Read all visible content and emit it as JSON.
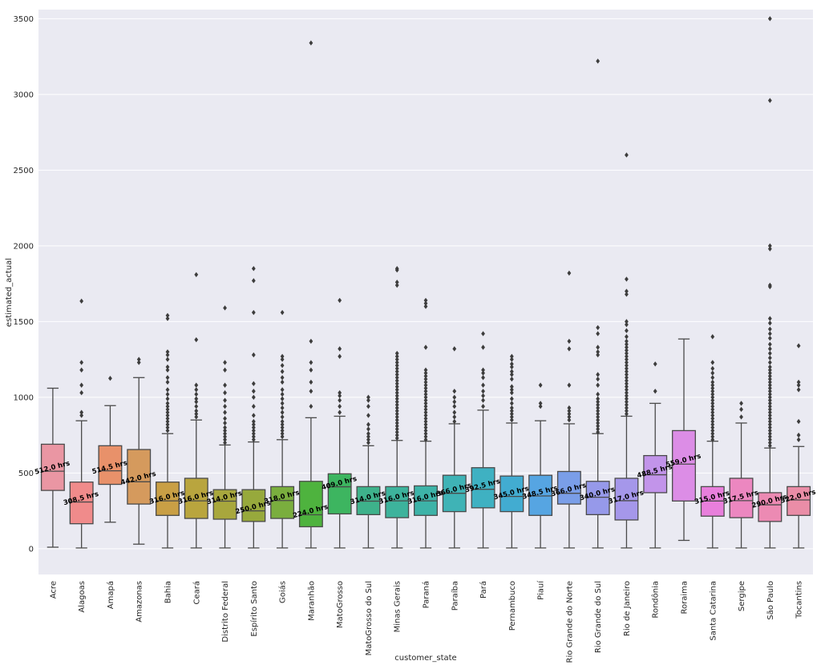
{
  "chart_data": {
    "type": "boxplot",
    "title": "",
    "xlabel": "customer_state",
    "ylabel": "estimated_actual",
    "ylim": [
      -170,
      3560
    ],
    "yticks": [
      0,
      500,
      1000,
      1500,
      2000,
      2500,
      3000,
      3500
    ],
    "ytick_labels": [
      "0",
      "500",
      "1000",
      "1500",
      "2000",
      "2500",
      "3000",
      "3500"
    ],
    "grid": true,
    "categories": [
      "Acre",
      "Alagoas",
      "Amapá",
      "Amazonas",
      "Bahia",
      "Ceará",
      "Distrito Federal",
      "Espírito Santo",
      "Goiás",
      "Maranhão",
      "MatoGrosso",
      "MatoGrosso do Sul",
      "Minas Gerais",
      "Paraná",
      "Paraíba",
      "Pará",
      "Pernambuco",
      "Piauí",
      "Rio Grande do Norte",
      "Rio Grande do Sul",
      "Rio de Janeiro",
      "Rondônia",
      "Roraima",
      "Santa Catarina",
      "Sergipe",
      "São Paulo",
      "Tocantins"
    ],
    "colors": [
      "#ea96a3",
      "#f08b8b",
      "#e8916a",
      "#d59a5d",
      "#c99f45",
      "#b9a53e",
      "#a8a73d",
      "#97a93c",
      "#7aae3e",
      "#4eb33e",
      "#3db560",
      "#3eb28b",
      "#3db39c",
      "#3db3a8",
      "#3fb3b6",
      "#3fb1c2",
      "#42acd1",
      "#56a5e2",
      "#7a9ee8",
      "#9699ea",
      "#a597ea",
      "#c294ea",
      "#dc8de6",
      "#e87fdc",
      "#ec87c0",
      "#ec8ab3",
      "#ea8da7"
    ],
    "boxes": [
      {
        "whislo": 10,
        "q1": 385,
        "med": 512,
        "q3": 690,
        "whishi": 1060,
        "label": "512.0 hrs",
        "fliers": []
      },
      {
        "whislo": 5,
        "q1": 165,
        "med": 308.5,
        "q3": 440,
        "whishi": 845,
        "label": "308.5 hrs",
        "fliers": [
          880,
          900,
          1030,
          1080,
          1180,
          1230,
          1635
        ]
      },
      {
        "whislo": 175,
        "q1": 425,
        "med": 514.5,
        "q3": 680,
        "whishi": 945,
        "label": "514.5 hrs",
        "fliers": [
          1125
        ]
      },
      {
        "whislo": 30,
        "q1": 295,
        "med": 442,
        "q3": 655,
        "whishi": 1130,
        "label": "442.0 hrs",
        "fliers": [
          1230,
          1250
        ]
      },
      {
        "whislo": 5,
        "q1": 220,
        "med": 316,
        "q3": 440,
        "whishi": 760,
        "label": "316.0 hrs",
        "fliers": [
          780,
          800,
          820,
          840,
          860,
          880,
          900,
          920,
          940,
          960,
          990,
          1020,
          1050,
          1100,
          1130,
          1180,
          1200,
          1250,
          1280,
          1300,
          1520,
          1540
        ]
      },
      {
        "whislo": 5,
        "q1": 200,
        "med": 316,
        "q3": 465,
        "whishi": 850,
        "label": "316.0 hrs",
        "fliers": [
          870,
          890,
          910,
          940,
          970,
          990,
          1020,
          1050,
          1080,
          1380,
          1810
        ]
      },
      {
        "whislo": 5,
        "q1": 195,
        "med": 314,
        "q3": 390,
        "whishi": 685,
        "label": "314.0 hrs",
        "fliers": [
          700,
          720,
          740,
          760,
          780,
          800,
          830,
          860,
          900,
          940,
          980,
          1030,
          1080,
          1180,
          1230,
          1590
        ]
      },
      {
        "whislo": 5,
        "q1": 180,
        "med": 250,
        "q3": 390,
        "whishi": 705,
        "label": "250.0 hrs",
        "fliers": [
          720,
          740,
          760,
          780,
          800,
          820,
          840,
          880,
          940,
          1000,
          1040,
          1090,
          1280,
          1560,
          1770,
          1850
        ]
      },
      {
        "whislo": 5,
        "q1": 200,
        "med": 318,
        "q3": 410,
        "whishi": 720,
        "label": "318.0 hrs",
        "fliers": [
          740,
          760,
          780,
          800,
          820,
          840,
          870,
          900,
          930,
          960,
          990,
          1020,
          1050,
          1100,
          1130,
          1170,
          1210,
          1250,
          1270,
          1560
        ]
      },
      {
        "whislo": 5,
        "q1": 145,
        "med": 224,
        "q3": 445,
        "whishi": 865,
        "label": "224.0 hrs",
        "fliers": [
          940,
          1040,
          1100,
          1180,
          1230,
          1370,
          3340
        ]
      },
      {
        "whislo": 5,
        "q1": 230,
        "med": 409,
        "q3": 495,
        "whishi": 875,
        "label": "409.0 hrs",
        "fliers": [
          900,
          940,
          980,
          1010,
          1030,
          1270,
          1320,
          1640
        ]
      },
      {
        "whislo": 5,
        "q1": 225,
        "med": 314,
        "q3": 410,
        "whishi": 680,
        "label": "314.0 hrs",
        "fliers": [
          700,
          720,
          740,
          760,
          790,
          820,
          880,
          940,
          980,
          1000
        ]
      },
      {
        "whislo": 5,
        "q1": 205,
        "med": 316,
        "q3": 410,
        "whishi": 715,
        "label": "316.0 hrs",
        "fliers": [
          730,
          750,
          770,
          790,
          810,
          830,
          850,
          870,
          890,
          910,
          930,
          950,
          970,
          990,
          1010,
          1030,
          1050,
          1070,
          1090,
          1110,
          1130,
          1150,
          1170,
          1190,
          1210,
          1230,
          1250,
          1270,
          1290,
          1740,
          1760,
          1840,
          1850
        ]
      },
      {
        "whislo": 5,
        "q1": 220,
        "med": 316,
        "q3": 415,
        "whishi": 710,
        "label": "316.0 hrs",
        "fliers": [
          720,
          740,
          760,
          780,
          800,
          820,
          840,
          860,
          880,
          900,
          920,
          940,
          960,
          980,
          1000,
          1020,
          1040,
          1060,
          1080,
          1100,
          1120,
          1140,
          1160,
          1180,
          1330,
          1600,
          1620,
          1640
        ]
      },
      {
        "whislo": 5,
        "q1": 245,
        "med": 366,
        "q3": 485,
        "whishi": 825,
        "label": "366.0 hrs",
        "fliers": [
          840,
          870,
          900,
          940,
          970,
          1000,
          1040,
          1320
        ]
      },
      {
        "whislo": 5,
        "q1": 270,
        "med": 392.5,
        "q3": 535,
        "whishi": 915,
        "label": "392.5 hrs",
        "fliers": [
          940,
          980,
          1010,
          1040,
          1080,
          1130,
          1160,
          1180,
          1330,
          1420
        ]
      },
      {
        "whislo": 5,
        "q1": 245,
        "med": 345,
        "q3": 480,
        "whishi": 830,
        "label": "345.0 hrs",
        "fliers": [
          850,
          870,
          890,
          910,
          930,
          960,
          990,
          1030,
          1050,
          1070,
          1120,
          1150,
          1170,
          1200,
          1220,
          1250,
          1270
        ]
      },
      {
        "whislo": 5,
        "q1": 220,
        "med": 348.5,
        "q3": 485,
        "whishi": 845,
        "label": "348.5 hrs",
        "fliers": [
          940,
          960,
          1080
        ]
      },
      {
        "whislo": 5,
        "q1": 295,
        "med": 366,
        "q3": 510,
        "whishi": 825,
        "label": "366.0 hrs",
        "fliers": [
          850,
          870,
          890,
          910,
          930,
          1080,
          1320,
          1370,
          1820
        ]
      },
      {
        "whislo": 5,
        "q1": 225,
        "med": 340,
        "q3": 445,
        "whishi": 760,
        "label": "340.0 hrs",
        "fliers": [
          770,
          790,
          810,
          830,
          850,
          870,
          890,
          910,
          930,
          950,
          970,
          990,
          1020,
          1080,
          1120,
          1150,
          1280,
          1300,
          1330,
          1420,
          1460,
          3220
        ]
      },
      {
        "whislo": 5,
        "q1": 190,
        "med": 317,
        "q3": 465,
        "whishi": 875,
        "label": "317.0 hrs",
        "fliers": [
          890,
          910,
          930,
          950,
          970,
          990,
          1010,
          1030,
          1050,
          1070,
          1090,
          1110,
          1130,
          1150,
          1170,
          1190,
          1210,
          1230,
          1250,
          1270,
          1290,
          1310,
          1330,
          1350,
          1370,
          1400,
          1440,
          1480,
          1500,
          1680,
          1700,
          1780,
          2600
        ]
      },
      {
        "whislo": 5,
        "q1": 370,
        "med": 488.5,
        "q3": 615,
        "whishi": 960,
        "label": "488.5 hrs",
        "fliers": [
          1040,
          1220
        ]
      },
      {
        "whislo": 55,
        "q1": 315,
        "med": 559,
        "q3": 780,
        "whishi": 1385,
        "label": "559.0 hrs",
        "fliers": []
      },
      {
        "whislo": 5,
        "q1": 215,
        "med": 315,
        "q3": 410,
        "whishi": 710,
        "label": "315.0 hrs",
        "fliers": [
          720,
          740,
          760,
          780,
          800,
          820,
          840,
          860,
          880,
          900,
          920,
          940,
          960,
          980,
          1000,
          1020,
          1040,
          1060,
          1080,
          1100,
          1130,
          1160,
          1190,
          1230,
          1400
        ]
      },
      {
        "whislo": 5,
        "q1": 205,
        "med": 317.5,
        "q3": 465,
        "whishi": 830,
        "label": "317.5 hrs",
        "fliers": [
          870,
          920,
          960
        ]
      },
      {
        "whislo": 5,
        "q1": 180,
        "med": 290,
        "q3": 370,
        "whishi": 665,
        "label": "290.0 hrs",
        "fliers": [
          680,
          700,
          720,
          740,
          760,
          780,
          800,
          820,
          840,
          860,
          880,
          900,
          920,
          940,
          960,
          980,
          1000,
          1020,
          1040,
          1060,
          1080,
          1100,
          1120,
          1140,
          1160,
          1180,
          1200,
          1230,
          1260,
          1290,
          1320,
          1350,
          1390,
          1420,
          1450,
          1490,
          1520,
          1730,
          1740,
          1980,
          2000,
          2960,
          3500
        ]
      },
      {
        "whislo": 5,
        "q1": 220,
        "med": 322,
        "q3": 410,
        "whishi": 675,
        "label": "322.0 hrs",
        "fliers": [
          720,
          750,
          840,
          1050,
          1080,
          1100,
          1340
        ]
      }
    ]
  }
}
